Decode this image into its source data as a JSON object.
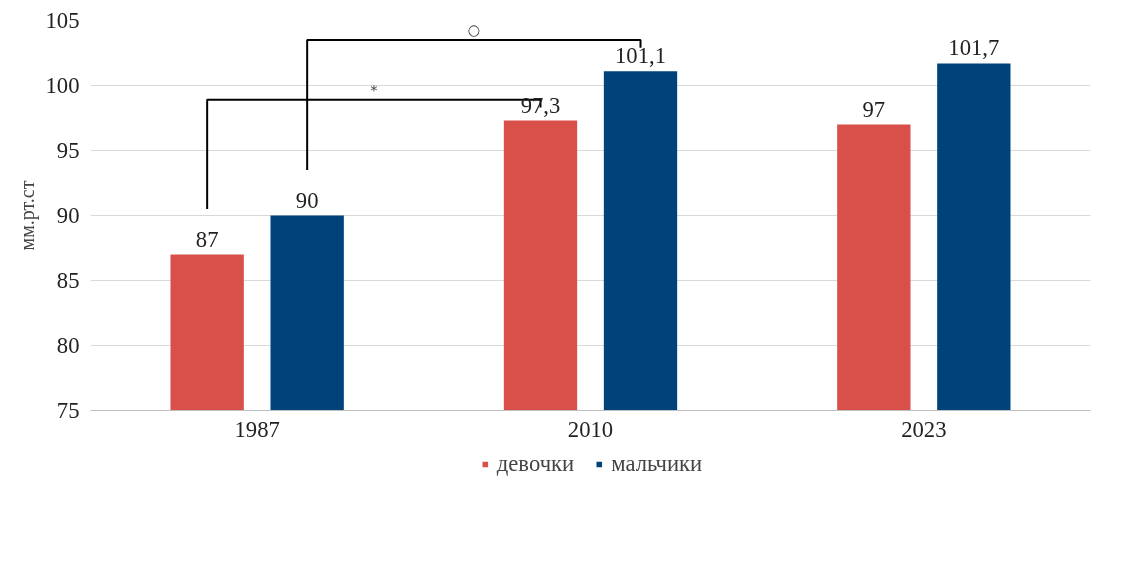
{
  "chart_data": {
    "type": "bar",
    "ylabel": "мм.рт.ст",
    "categories": [
      "1987",
      "2010",
      "2023"
    ],
    "series": [
      {
        "name": "девочки",
        "color": "#d9504a",
        "values": [
          87,
          97.3,
          97
        ],
        "value_labels": [
          "87",
          "97,3",
          "97"
        ]
      },
      {
        "name": "мальчики",
        "color": "#00437a",
        "values": [
          90,
          101.1,
          101.7
        ],
        "value_labels": [
          "90",
          "101,1",
          "101,7"
        ]
      }
    ],
    "ylim": [
      75,
      105
    ],
    "yticks": [
      75,
      80,
      85,
      90,
      95,
      100,
      105
    ],
    "grid": "y",
    "legend": "bottom",
    "annotations": [
      "*",
      "○"
    ]
  }
}
